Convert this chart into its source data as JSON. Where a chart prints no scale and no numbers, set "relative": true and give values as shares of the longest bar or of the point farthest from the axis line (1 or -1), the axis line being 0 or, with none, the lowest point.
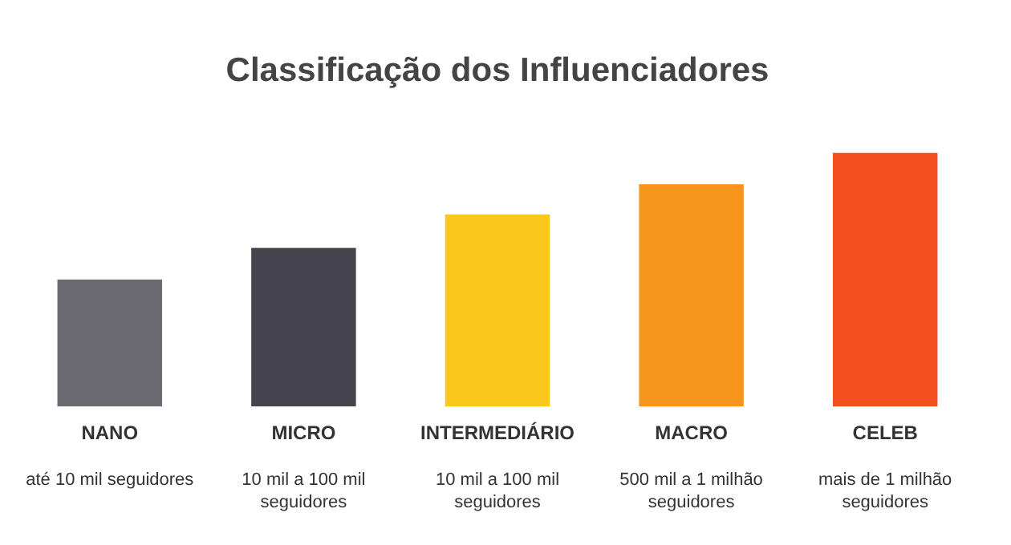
{
  "chart_data": {
    "type": "bar",
    "title": "Classificação dos Influenciadores",
    "relative": true,
    "categories": [
      "NANO",
      "MICRO",
      "INTERMEDIÁRIO",
      "MACRO",
      "CELEB"
    ],
    "values": [
      0.5,
      0.625,
      0.757,
      0.875,
      1
    ],
    "colors": [
      "#6b6a70",
      "#45444c",
      "#f9c81a",
      "#f7941d",
      "#f34e1e"
    ],
    "annotations": [
      "até 10 mil seguidores",
      "10 mil a 100 mil seguidores",
      "10 mil a 100 mil seguidores",
      "500 mil a 1 milhão seguidores",
      "mais de 1 milhão seguidores"
    ],
    "grid": false,
    "legend": false
  }
}
